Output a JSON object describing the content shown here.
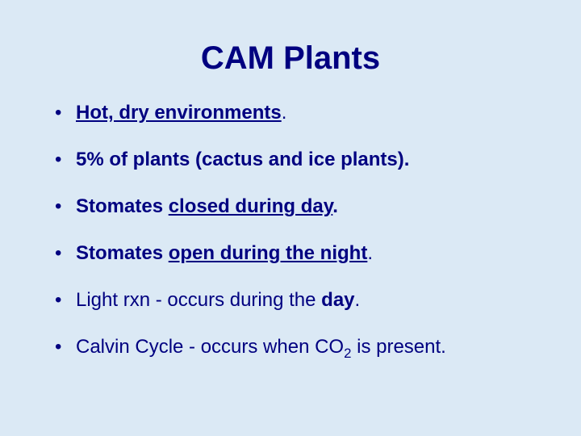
{
  "slide": {
    "background_color": "#dbe9f5",
    "title": {
      "text": "CAM Plants",
      "color": "#000080",
      "fontsize": 40,
      "font_family": "Arial"
    },
    "bullets": {
      "color": "#000080",
      "fontsize": 24,
      "bullet_color": "#000080",
      "font_family": "Arial",
      "items": [
        {
          "segments": [
            {
              "text": "Hot, dry environments",
              "bold": true,
              "underline": true
            },
            {
              "text": ".",
              "bold": false,
              "underline": false
            }
          ]
        },
        {
          "segments": [
            {
              "text": "5% of plants (cactus and ice plants).",
              "bold": true,
              "underline": false
            }
          ]
        },
        {
          "segments": [
            {
              "text": "Stomates ",
              "bold": true,
              "underline": false
            },
            {
              "text": "closed during day",
              "bold": true,
              "underline": true
            },
            {
              "text": ".",
              "bold": true,
              "underline": false
            }
          ]
        },
        {
          "segments": [
            {
              "text": "Stomates ",
              "bold": true,
              "underline": false
            },
            {
              "text": "open during the night",
              "bold": true,
              "underline": true
            },
            {
              "text": ".",
              "bold": false,
              "underline": false
            }
          ]
        },
        {
          "segments": [
            {
              "text": "Light rxn - occurs during the ",
              "bold": false,
              "underline": false
            },
            {
              "text": "day",
              "bold": true,
              "underline": false
            },
            {
              "text": ".",
              "bold": false,
              "underline": false
            }
          ]
        },
        {
          "segments": [
            {
              "text": "Calvin Cycle - occurs when CO",
              "bold": false,
              "underline": false
            },
            {
              "text": "2",
              "bold": false,
              "underline": false,
              "sub": true
            },
            {
              "text": " is present.",
              "bold": false,
              "underline": false
            }
          ]
        }
      ]
    }
  }
}
